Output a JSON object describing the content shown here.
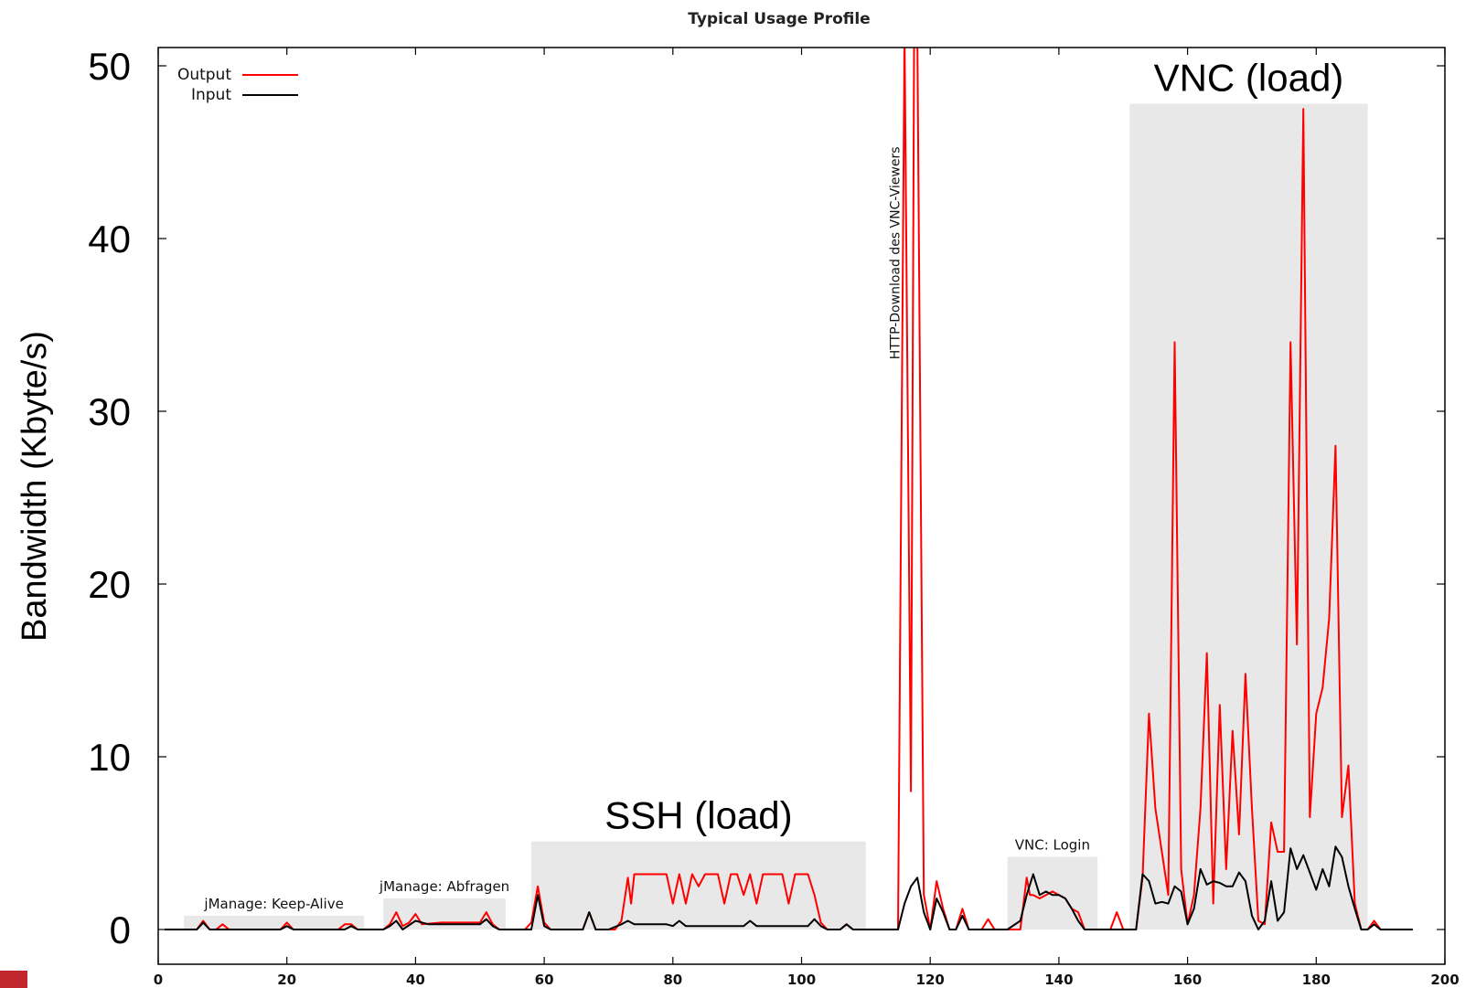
{
  "chart_data": {
    "type": "line",
    "title": "Typical Usage Profile",
    "xlabel": "",
    "ylabel": "Bandwidth (Kbyte/s)",
    "xlim": [
      0,
      200
    ],
    "ylim": [
      0,
      50
    ],
    "x_ticks": [
      0,
      20,
      40,
      60,
      80,
      100,
      120,
      140,
      160,
      180,
      200
    ],
    "y_ticks": [
      0,
      10,
      20,
      30,
      40,
      50
    ],
    "legend": {
      "placement": "top-left"
    },
    "grid": false,
    "series": [
      {
        "name": "Output",
        "color": "#ff0000",
        "points": [
          [
            1,
            0
          ],
          [
            4,
            0
          ],
          [
            6,
            0
          ],
          [
            7,
            0.5
          ],
          [
            8,
            0
          ],
          [
            9,
            0
          ],
          [
            10,
            0.3
          ],
          [
            11,
            0
          ],
          [
            14,
            0
          ],
          [
            18,
            0
          ],
          [
            19,
            0
          ],
          [
            20,
            0.4
          ],
          [
            21,
            0
          ],
          [
            25,
            0
          ],
          [
            28,
            0
          ],
          [
            29,
            0.3
          ],
          [
            30,
            0.3
          ],
          [
            31,
            0
          ],
          [
            35,
            0
          ],
          [
            36,
            0.3
          ],
          [
            37,
            1.0
          ],
          [
            38,
            0.2
          ],
          [
            39,
            0.4
          ],
          [
            40,
            0.9
          ],
          [
            41,
            0.3
          ],
          [
            44,
            0.4
          ],
          [
            48,
            0.4
          ],
          [
            50,
            0.4
          ],
          [
            51,
            1.0
          ],
          [
            52,
            0.3
          ],
          [
            53,
            0
          ],
          [
            56,
            0
          ],
          [
            57,
            0
          ],
          [
            58,
            0.4
          ],
          [
            59,
            2.5
          ],
          [
            60,
            0.4
          ],
          [
            61,
            0
          ],
          [
            64,
            0
          ],
          [
            65,
            0
          ],
          [
            66,
            0
          ],
          [
            67,
            1.0
          ],
          [
            68,
            0
          ],
          [
            70,
            0
          ],
          [
            71,
            0
          ],
          [
            72,
            0.5
          ],
          [
            73,
            3.0
          ],
          [
            73.5,
            1.5
          ],
          [
            74,
            3.2
          ],
          [
            75,
            3.2
          ],
          [
            79,
            3.2
          ],
          [
            80,
            1.5
          ],
          [
            81,
            3.2
          ],
          [
            82,
            1.5
          ],
          [
            83,
            3.2
          ],
          [
            84,
            2.5
          ],
          [
            85,
            3.2
          ],
          [
            87,
            3.2
          ],
          [
            88,
            1.5
          ],
          [
            89,
            3.2
          ],
          [
            90,
            3.2
          ],
          [
            91,
            2.0
          ],
          [
            92,
            3.2
          ],
          [
            93,
            1.5
          ],
          [
            94,
            3.2
          ],
          [
            97,
            3.2
          ],
          [
            98,
            1.5
          ],
          [
            99,
            3.2
          ],
          [
            101,
            3.2
          ],
          [
            102,
            2.0
          ],
          [
            103,
            0.4
          ],
          [
            104,
            0
          ],
          [
            106,
            0
          ],
          [
            107,
            0.3
          ],
          [
            108,
            0
          ],
          [
            110,
            0
          ],
          [
            111,
            0
          ],
          [
            112,
            0
          ],
          [
            115,
            0
          ],
          [
            116,
            52
          ],
          [
            117,
            8
          ],
          [
            117.5,
            52
          ],
          [
            118,
            52
          ],
          [
            119,
            2
          ],
          [
            120,
            0
          ],
          [
            121,
            2.8
          ],
          [
            122,
            1.2
          ],
          [
            123,
            0
          ],
          [
            124,
            0
          ],
          [
            125,
            1.2
          ],
          [
            126,
            0
          ],
          [
            128,
            0
          ],
          [
            129,
            0.6
          ],
          [
            130,
            0
          ],
          [
            132,
            0
          ],
          [
            133,
            0
          ],
          [
            134,
            0
          ],
          [
            135,
            3.0
          ],
          [
            135.5,
            2.0
          ],
          [
            136,
            2.0
          ],
          [
            137,
            1.8
          ],
          [
            138,
            2.0
          ],
          [
            139,
            2.2
          ],
          [
            140,
            2.0
          ],
          [
            141,
            1.8
          ],
          [
            142,
            1.2
          ],
          [
            143,
            1.0
          ],
          [
            144,
            0
          ],
          [
            146,
            0
          ],
          [
            147,
            0
          ],
          [
            148,
            0
          ],
          [
            149,
            1.0
          ],
          [
            150,
            0
          ],
          [
            152,
            0
          ],
          [
            153,
            3.0
          ],
          [
            154,
            12.5
          ],
          [
            155,
            7
          ],
          [
            156,
            4.5
          ],
          [
            157,
            2
          ],
          [
            158,
            34
          ],
          [
            159,
            3.5
          ],
          [
            160,
            0.3
          ],
          [
            161,
            2
          ],
          [
            162,
            7
          ],
          [
            163,
            16
          ],
          [
            164,
            1.5
          ],
          [
            165,
            13
          ],
          [
            166,
            3.5
          ],
          [
            167,
            11.5
          ],
          [
            168,
            5.5
          ],
          [
            169,
            14.8
          ],
          [
            170,
            7
          ],
          [
            171,
            0.5
          ],
          [
            172,
            0.3
          ],
          [
            173,
            6.2
          ],
          [
            174,
            4.5
          ],
          [
            175,
            4.5
          ],
          [
            176,
            34
          ],
          [
            177,
            16.5
          ],
          [
            178,
            47.5
          ],
          [
            179,
            6.5
          ],
          [
            180,
            12.5
          ],
          [
            181,
            14
          ],
          [
            182,
            18
          ],
          [
            183,
            28
          ],
          [
            184,
            6.5
          ],
          [
            185,
            9.5
          ],
          [
            186,
            1.5
          ],
          [
            187,
            0
          ],
          [
            188,
            0
          ],
          [
            189,
            0.5
          ],
          [
            190,
            0
          ],
          [
            195,
            0
          ]
        ]
      },
      {
        "name": "Input",
        "color": "#000000",
        "points": [
          [
            1,
            0
          ],
          [
            4,
            0
          ],
          [
            6,
            0
          ],
          [
            7,
            0.4
          ],
          [
            8,
            0
          ],
          [
            19,
            0
          ],
          [
            20,
            0.2
          ],
          [
            21,
            0
          ],
          [
            29,
            0
          ],
          [
            30,
            0.2
          ],
          [
            31,
            0
          ],
          [
            35,
            0
          ],
          [
            36,
            0.2
          ],
          [
            37,
            0.5
          ],
          [
            38,
            0
          ],
          [
            40,
            0.5
          ],
          [
            42,
            0.3
          ],
          [
            50,
            0.3
          ],
          [
            51,
            0.6
          ],
          [
            52,
            0.2
          ],
          [
            53,
            0
          ],
          [
            58,
            0
          ],
          [
            59,
            2.0
          ],
          [
            60,
            0.2
          ],
          [
            61,
            0
          ],
          [
            66,
            0
          ],
          [
            67,
            1.0
          ],
          [
            68,
            0
          ],
          [
            70,
            0
          ],
          [
            72,
            0.3
          ],
          [
            73,
            0.5
          ],
          [
            74,
            0.3
          ],
          [
            79,
            0.3
          ],
          [
            80,
            0.2
          ],
          [
            81,
            0.5
          ],
          [
            82,
            0.2
          ],
          [
            91,
            0.2
          ],
          [
            92,
            0.5
          ],
          [
            93,
            0.2
          ],
          [
            99,
            0.2
          ],
          [
            101,
            0.2
          ],
          [
            102,
            0.6
          ],
          [
            103,
            0.2
          ],
          [
            104,
            0
          ],
          [
            106,
            0
          ],
          [
            107,
            0.3
          ],
          [
            108,
            0
          ],
          [
            115,
            0
          ],
          [
            116,
            1.5
          ],
          [
            117,
            2.5
          ],
          [
            118,
            3.0
          ],
          [
            119,
            1.0
          ],
          [
            120,
            0
          ],
          [
            121,
            1.8
          ],
          [
            122,
            1.0
          ],
          [
            123,
            0
          ],
          [
            124,
            0
          ],
          [
            125,
            0.8
          ],
          [
            126,
            0
          ],
          [
            132,
            0
          ],
          [
            134,
            0.5
          ],
          [
            135,
            2.0
          ],
          [
            136,
            3.2
          ],
          [
            137,
            2.0
          ],
          [
            138,
            2.2
          ],
          [
            139,
            2.0
          ],
          [
            140,
            2.0
          ],
          [
            141,
            1.8
          ],
          [
            142,
            1.2
          ],
          [
            143,
            0.5
          ],
          [
            144,
            0
          ],
          [
            152,
            0
          ],
          [
            153,
            3.2
          ],
          [
            154,
            2.8
          ],
          [
            155,
            1.5
          ],
          [
            156,
            1.6
          ],
          [
            157,
            1.5
          ],
          [
            158,
            2.5
          ],
          [
            159,
            2.2
          ],
          [
            160,
            0.3
          ],
          [
            161,
            1.2
          ],
          [
            162,
            3.5
          ],
          [
            163,
            2.6
          ],
          [
            164,
            2.8
          ],
          [
            165,
            2.7
          ],
          [
            166,
            2.5
          ],
          [
            167,
            2.5
          ],
          [
            168,
            3.3
          ],
          [
            169,
            2.8
          ],
          [
            170,
            0.8
          ],
          [
            171,
            0
          ],
          [
            172,
            0.5
          ],
          [
            173,
            2.8
          ],
          [
            174,
            0.5
          ],
          [
            175,
            1.0
          ],
          [
            176,
            4.7
          ],
          [
            177,
            3.5
          ],
          [
            178,
            4.3
          ],
          [
            179,
            3.3
          ],
          [
            180,
            2.3
          ],
          [
            181,
            3.5
          ],
          [
            182,
            2.5
          ],
          [
            183,
            4.8
          ],
          [
            184,
            4.2
          ],
          [
            185,
            2.5
          ],
          [
            186,
            1.2
          ],
          [
            187,
            0
          ],
          [
            188,
            0
          ],
          [
            189,
            0.3
          ],
          [
            190,
            0
          ],
          [
            195,
            0
          ]
        ]
      }
    ],
    "shaded_regions": [
      {
        "x": [
          4,
          32
        ],
        "ymax": 0.8,
        "label": "jManage: Keep-Alive",
        "label_style": "small"
      },
      {
        "x": [
          35,
          54
        ],
        "ymax": 1.8,
        "label": "jManage: Abfragen",
        "label_style": "small"
      },
      {
        "x": [
          58,
          110
        ],
        "ymax": 5.1,
        "label": "SSH (load)",
        "label_style": "big"
      },
      {
        "x": [
          132,
          146
        ],
        "ymax": 4.2,
        "label": "VNC: Login",
        "label_style": "small"
      },
      {
        "x": [
          151,
          188
        ],
        "ymax": 47.8,
        "label": "VNC (load)",
        "label_style": "big"
      }
    ],
    "annotations": [
      {
        "text": "HTTP-Download des VNC-Viewers",
        "x": 114.5,
        "y": 33,
        "orientation": "vertical"
      }
    ]
  }
}
